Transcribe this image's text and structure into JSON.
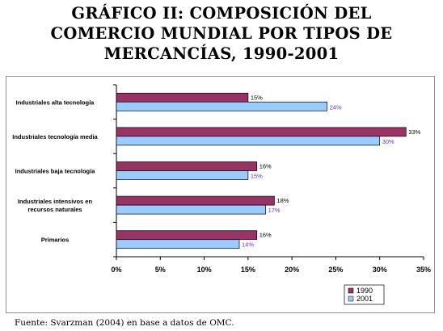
{
  "title_lines": [
    "GRÁFICO II: COMPOSICIÓN DEL",
    "COMERCIO MUNDIAL POR TIPOS DE",
    "MERCANCÍAS, 1990-2001"
  ],
  "source": "Fuente: Svarzman (2004) en base a datos de OMC.",
  "colors": {
    "1990": "#993366",
    "2001": "#99CCFF",
    "label_2001": "#6633CC",
    "label_1990": "#000000"
  },
  "chart_data": {
    "type": "bar",
    "orientation": "horizontal",
    "categories": [
      [
        "Industriales alta tecnología"
      ],
      [
        "Industriales tecnología media"
      ],
      [
        "Industriales baja tecnología"
      ],
      [
        "Industriales intensivos en",
        "recursos naturales"
      ],
      [
        "Primarios"
      ]
    ],
    "series": [
      {
        "name": "1990",
        "values": [
          15,
          33,
          16,
          18,
          16
        ],
        "labels": [
          "15%",
          "33%",
          "16%",
          "18%",
          "16%"
        ]
      },
      {
        "name": "2001",
        "values": [
          24,
          30,
          15,
          17,
          14
        ],
        "labels": [
          "24%",
          "30%",
          "15%",
          "17%",
          "14%"
        ]
      }
    ],
    "xlim": [
      0,
      35
    ],
    "xticks": [
      "0%",
      "5%",
      "10%",
      "15%",
      "20%",
      "25%",
      "30%",
      "35%"
    ],
    "xtick_values": [
      0,
      5,
      10,
      15,
      20,
      25,
      30,
      35
    ],
    "legend_position": "bottom-right"
  }
}
